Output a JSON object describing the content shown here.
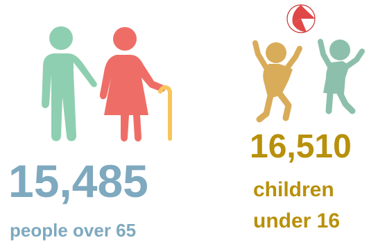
{
  "colors": {
    "blue": "#7ea9bf",
    "gold": "#b8900a",
    "elder_man": "#8fcfb1",
    "elder_woman": "#ee6e67",
    "cane": "#f8c55c",
    "child_a": "#d9ac5a",
    "child_b": "#8dc0ac",
    "ball_red": "#e04848"
  },
  "elderly": {
    "icon": "elderly-couple-icon",
    "count": "15,485",
    "label": "people over 65"
  },
  "children": {
    "icon": "children-playing-icon",
    "count": "16,510",
    "label_line1": "children",
    "label_line2": "under 16"
  }
}
